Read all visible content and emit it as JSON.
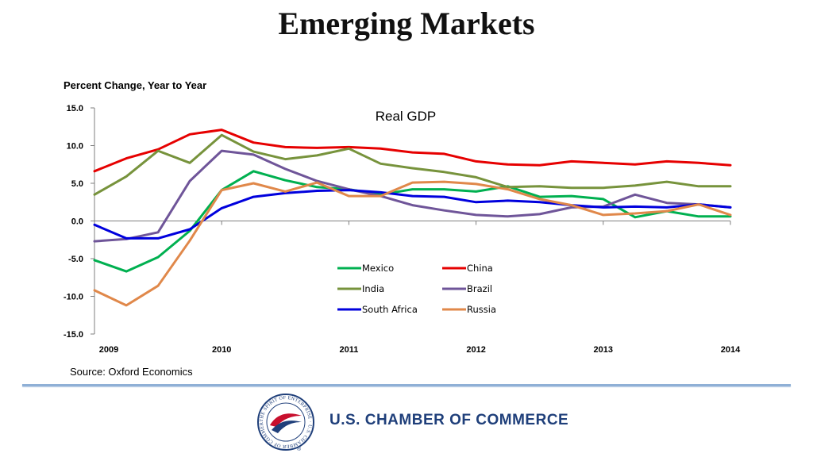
{
  "page_title": "Emerging Markets",
  "subtitle": "Percent Change, Year to Year",
  "source": "Source: Oxford Economics",
  "org": {
    "name": "U.S. CHAMBER OF COMMERCE",
    "seal_text": "THE SPIRIT OF ENTERPRISE · U.S. CHAMBER OF COMMERCE",
    "registered_mark": "®"
  },
  "colors": {
    "mexico": "#00b050",
    "china": "#e60000",
    "india": "#77933c",
    "brazil": "#6f5599",
    "south_africa": "#0000dd",
    "russia": "#e0884a",
    "axis": "#7f7f7f"
  },
  "chart_data": {
    "type": "line",
    "title": "Real GDP",
    "xlabel": "",
    "ylabel": "",
    "xlim": [
      2009,
      2014
    ],
    "ylim": [
      -15,
      15
    ],
    "yticks": [
      15,
      10,
      5,
      0,
      -5,
      -10,
      -15
    ],
    "ytick_labels": [
      "15.0",
      "10.0",
      "5.0",
      "0.0",
      "-5.0",
      "-10.0",
      "-15.0"
    ],
    "xticks": [
      2009,
      2010,
      2011,
      2012,
      2013,
      2014
    ],
    "xtick_labels": [
      "2009",
      "2010",
      "2011",
      "2012",
      "2013",
      "2014"
    ],
    "legend_position": "lower-right",
    "x": [
      2009.0,
      2009.25,
      2009.5,
      2009.75,
      2010.0,
      2010.25,
      2010.5,
      2010.75,
      2011.0,
      2011.25,
      2011.5,
      2011.75,
      2012.0,
      2012.25,
      2012.5,
      2012.75,
      2013.0,
      2013.25,
      2013.5,
      2013.75,
      2014.0
    ],
    "series": [
      {
        "name": "Mexico",
        "color_key": "mexico",
        "values": [
          -5.2,
          -6.7,
          -4.8,
          -1.3,
          4.1,
          6.6,
          5.4,
          4.5,
          4.2,
          3.5,
          4.2,
          4.2,
          3.9,
          4.6,
          3.2,
          3.3,
          2.9,
          0.5,
          1.3,
          0.6,
          0.6
        ]
      },
      {
        "name": "China",
        "color_key": "china",
        "values": [
          6.6,
          8.3,
          9.5,
          11.5,
          12.1,
          10.4,
          9.8,
          9.7,
          9.8,
          9.6,
          9.1,
          8.9,
          7.9,
          7.5,
          7.4,
          7.9,
          7.7,
          7.5,
          7.9,
          7.7,
          7.4
        ]
      },
      {
        "name": "India",
        "color_key": "india",
        "values": [
          3.5,
          5.9,
          9.3,
          7.7,
          11.4,
          9.2,
          8.2,
          8.7,
          9.6,
          7.6,
          7.0,
          6.5,
          5.8,
          4.5,
          4.6,
          4.4,
          4.4,
          4.7,
          5.2,
          4.6,
          4.6
        ]
      },
      {
        "name": "Brazil",
        "color_key": "brazil",
        "values": [
          -2.7,
          -2.4,
          -1.5,
          5.3,
          9.3,
          8.8,
          6.9,
          5.3,
          4.2,
          3.3,
          2.1,
          1.4,
          0.8,
          0.6,
          0.9,
          1.8,
          1.9,
          3.5,
          2.4,
          2.2,
          1.8
        ]
      },
      {
        "name": "South Africa",
        "color_key": "south_africa",
        "values": [
          -0.5,
          -2.3,
          -2.3,
          -1.1,
          1.7,
          3.2,
          3.7,
          4.0,
          4.1,
          3.8,
          3.3,
          3.2,
          2.5,
          2.7,
          2.5,
          2.1,
          1.8,
          1.9,
          1.8,
          2.2,
          1.8
        ]
      },
      {
        "name": "Russia",
        "color_key": "russia",
        "values": [
          -9.2,
          -11.2,
          -8.6,
          -2.6,
          4.1,
          5.0,
          3.9,
          5.1,
          3.3,
          3.3,
          5.1,
          5.2,
          4.9,
          4.2,
          2.9,
          2.1,
          0.8,
          1.0,
          1.3,
          2.2,
          0.8
        ]
      }
    ]
  }
}
